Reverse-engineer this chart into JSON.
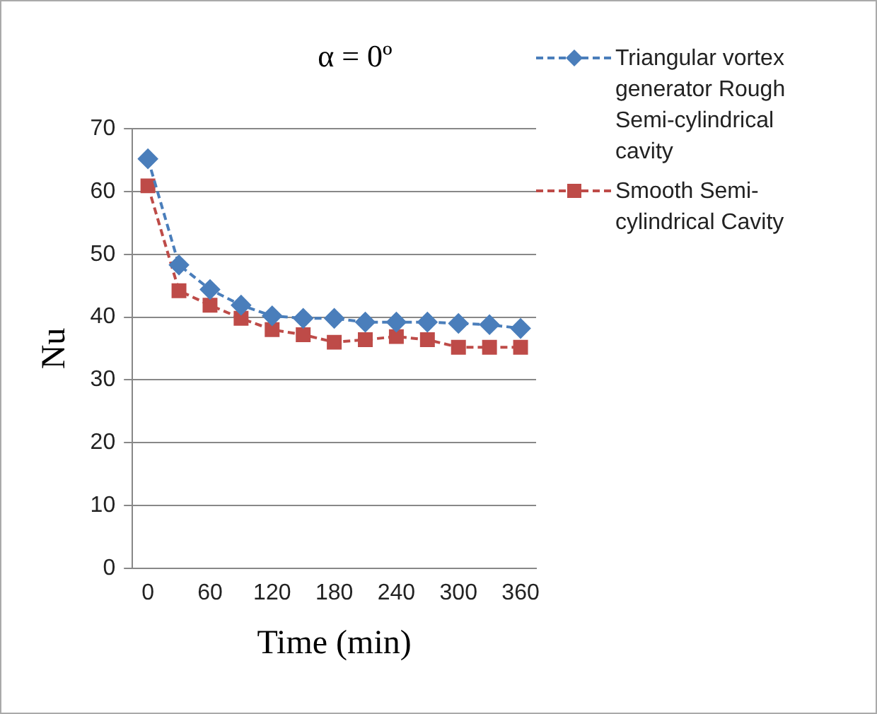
{
  "chart_data": {
    "type": "line",
    "title": "α = 0º",
    "xlabel": "Time (min)",
    "ylabel": "Nu",
    "categories": [
      "0",
      null,
      "60",
      null,
      "120",
      null,
      "180",
      null,
      "240",
      null,
      "300",
      null,
      "360"
    ],
    "series": [
      {
        "name": "Triangular vortex generator Rough Semi-cylindrical cavity",
        "color": "#4a7ebb",
        "marker": "diamond",
        "values": [
          65.2,
          48.3,
          44.4,
          41.9,
          40.2,
          39.8,
          39.8,
          39.2,
          39.2,
          39.2,
          39,
          38.8,
          38.2
        ]
      },
      {
        "name": "Smooth Semi-cylindrical Cavity",
        "color": "#be4b48",
        "marker": "square",
        "values": [
          60.9,
          44.2,
          41.9,
          39.8,
          38,
          37.2,
          36,
          36.4,
          36.9,
          36.4,
          35.2,
          35.2,
          35.2
        ]
      }
    ],
    "ylim": [
      0,
      70
    ],
    "yticks": [
      0,
      10,
      20,
      30,
      40,
      50,
      60,
      70
    ],
    "grid": "y",
    "legend": "right",
    "line_style": "dashed"
  }
}
